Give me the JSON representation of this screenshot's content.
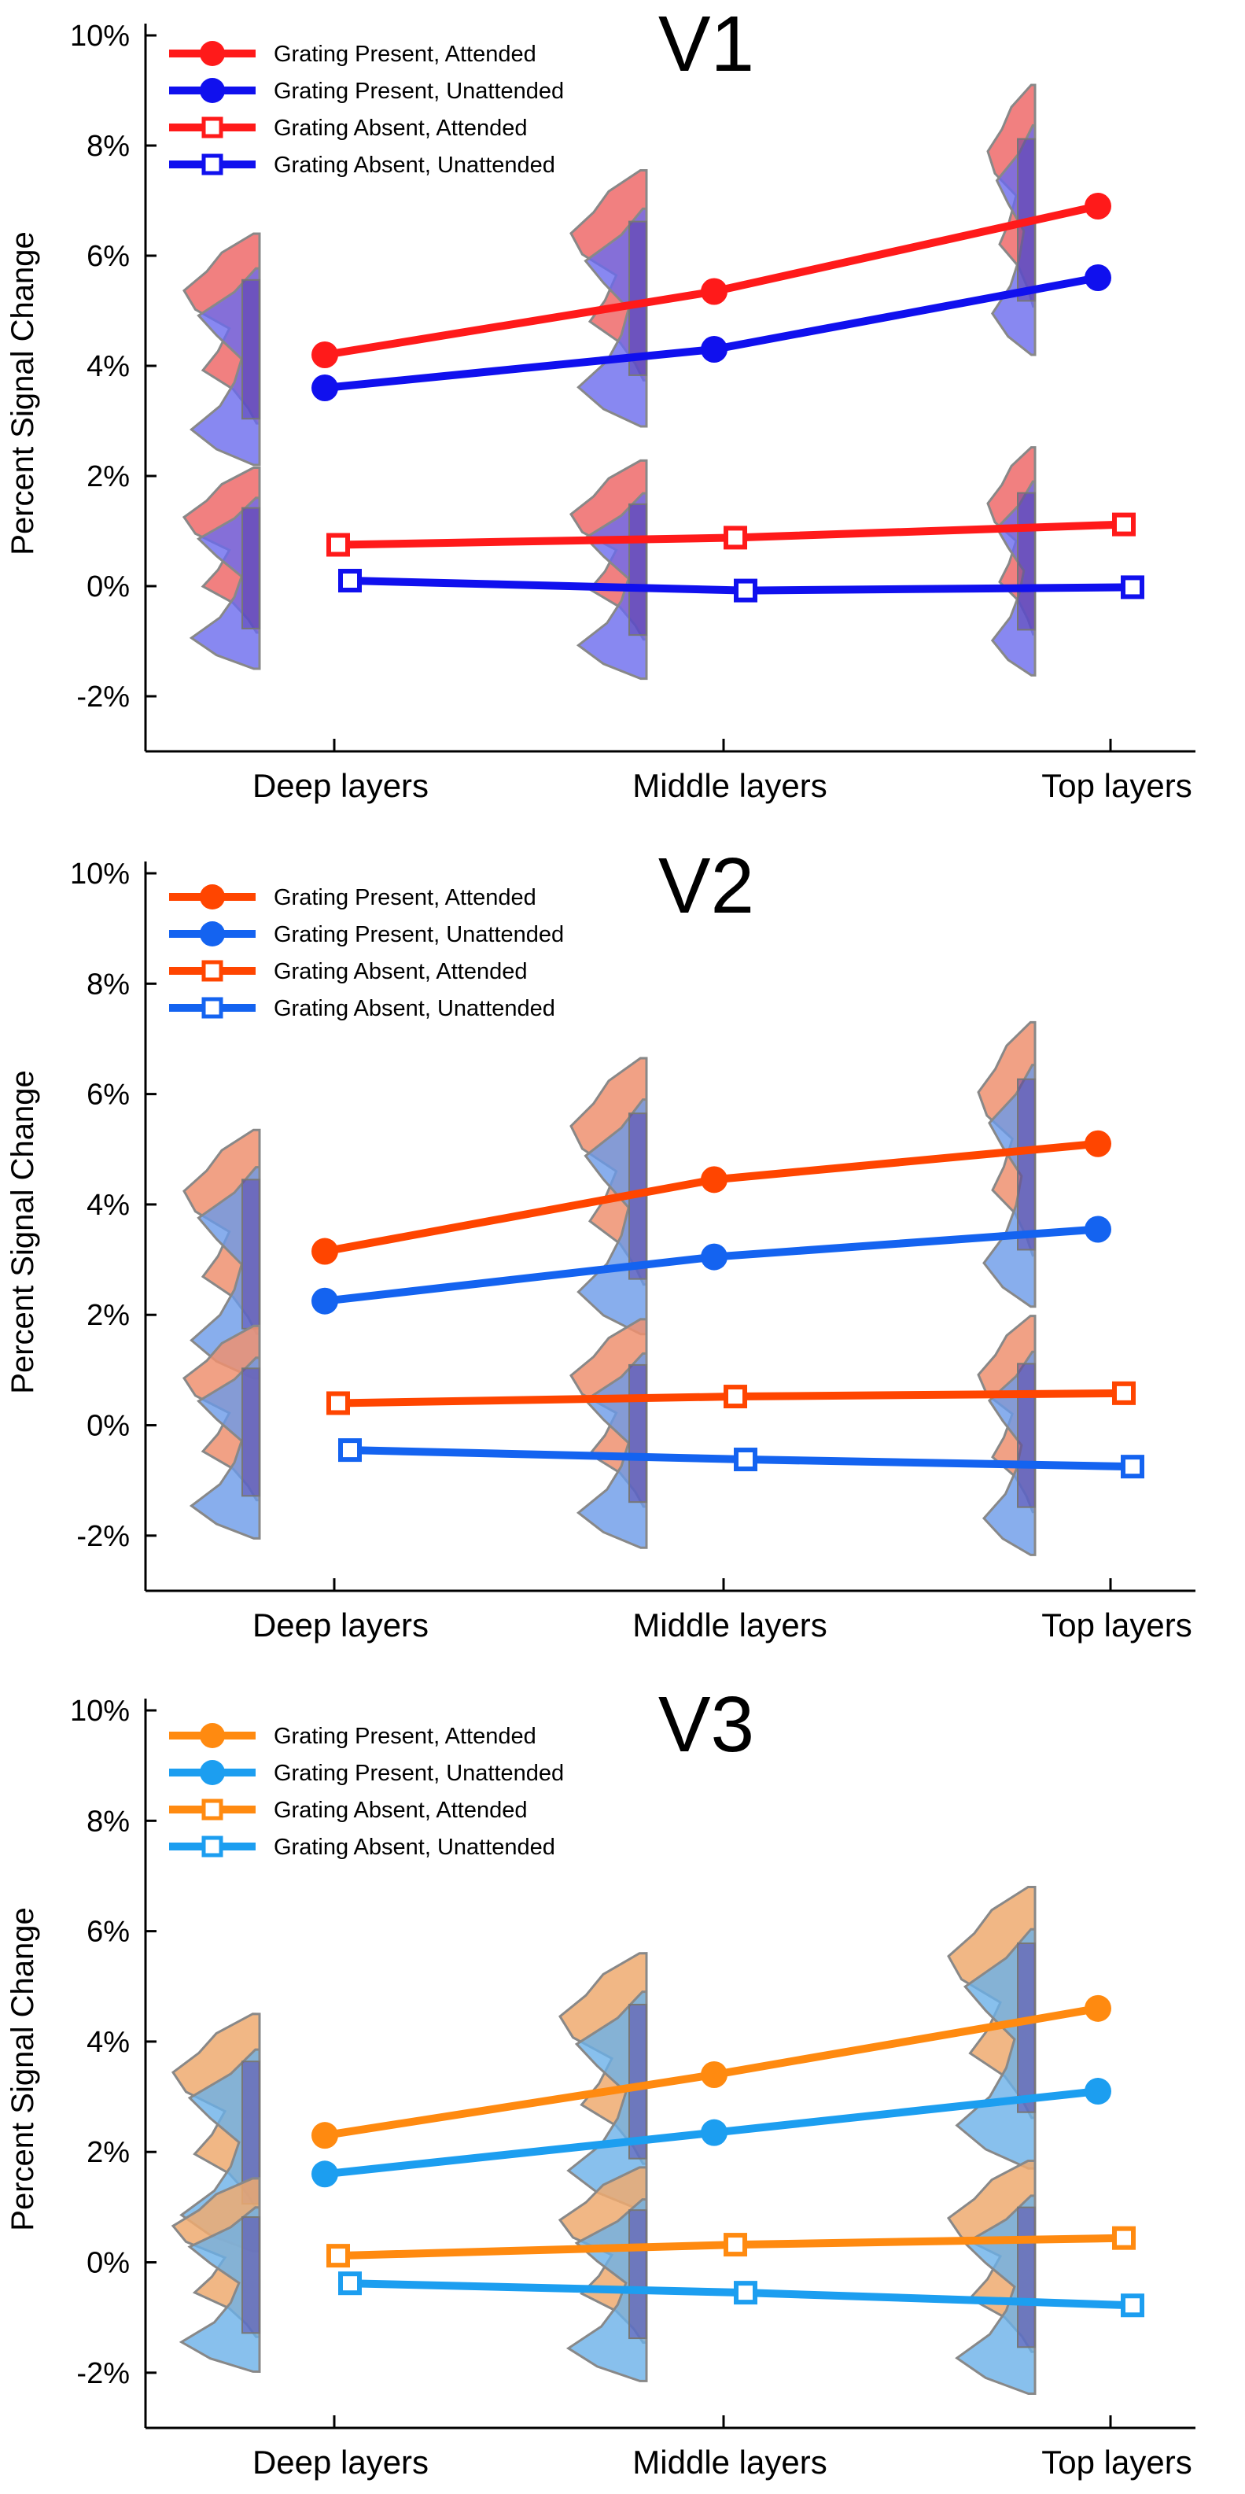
{
  "chart_data": [
    {
      "type": "line",
      "title": "V1",
      "ylabel": "Percent Signal Change",
      "ylim": [
        -3,
        10
      ],
      "yticks": [
        "10%",
        "8%",
        "6%",
        "4%",
        "2%",
        "0%",
        "-2%"
      ],
      "categories": [
        "Deep layers",
        "Middle layers",
        "Top layers"
      ],
      "legend_position": "top-left",
      "colors": {
        "attended": "#ff1a1a",
        "unattended": "#1010ee",
        "fill_attended": "#ee6a6a",
        "fill_unattended": "#6a6aee"
      },
      "series": [
        {
          "name": "Grating Present, Attended",
          "marker": "circle",
          "values": [
            4.2,
            5.35,
            6.9
          ]
        },
        {
          "name": "Grating Present, Unattended",
          "marker": "circle",
          "values": [
            3.6,
            4.3,
            5.6
          ]
        },
        {
          "name": "Grating Absent,  Attended",
          "marker": "square",
          "values": [
            0.75,
            0.88,
            1.12
          ]
        },
        {
          "name": "Grating Absent,  Unattended",
          "marker": "square",
          "values": [
            0.1,
            -0.08,
            -0.02
          ]
        }
      ]
    },
    {
      "type": "line",
      "title": "V2",
      "ylabel": "Percent Signal Change",
      "ylim": [
        -3,
        10
      ],
      "yticks": [
        "10%",
        "8%",
        "6%",
        "4%",
        "2%",
        "0%",
        "-2%"
      ],
      "categories": [
        "Deep layers",
        "Middle layers",
        "Top layers"
      ],
      "legend_position": "top-left",
      "colors": {
        "attended": "#ff4500",
        "unattended": "#1463f0",
        "fill_attended": "#ee9070",
        "fill_unattended": "#6a9ae8"
      },
      "series": [
        {
          "name": "Grating Present, Attended",
          "marker": "circle",
          "values": [
            3.15,
            4.45,
            5.1
          ]
        },
        {
          "name": "Grating Present, Unattended",
          "marker": "circle",
          "values": [
            2.25,
            3.05,
            3.55
          ]
        },
        {
          "name": "Grating Absent,  Attended",
          "marker": "square",
          "values": [
            0.4,
            0.52,
            0.58
          ]
        },
        {
          "name": "Grating Absent,  Unattended",
          "marker": "square",
          "values": [
            -0.45,
            -0.62,
            -0.75
          ]
        }
      ]
    },
    {
      "type": "line",
      "title": "V3",
      "ylabel": "Percent Signal Change",
      "ylim": [
        -3,
        10
      ],
      "yticks": [
        "10%",
        "8%",
        "6%",
        "4%",
        "2%",
        "0%",
        "-2%"
      ],
      "categories": [
        "Deep layers",
        "Middle layers",
        "Top layers"
      ],
      "legend_position": "top-left",
      "colors": {
        "attended": "#ff8a10",
        "unattended": "#1c9ef0",
        "fill_attended": "#eeaa70",
        "fill_unattended": "#6ab0e8"
      },
      "series": [
        {
          "name": "Grating Present, Attended",
          "marker": "circle",
          "values": [
            2.3,
            3.4,
            4.6
          ]
        },
        {
          "name": "Grating Present, Unattended",
          "marker": "circle",
          "values": [
            1.6,
            2.35,
            3.1
          ]
        },
        {
          "name": "Grating Absent,  Attended",
          "marker": "square",
          "values": [
            0.12,
            0.32,
            0.44
          ]
        },
        {
          "name": "Grating Absent,  Unattended",
          "marker": "square",
          "values": [
            -0.38,
            -0.55,
            -0.78
          ]
        }
      ]
    }
  ]
}
